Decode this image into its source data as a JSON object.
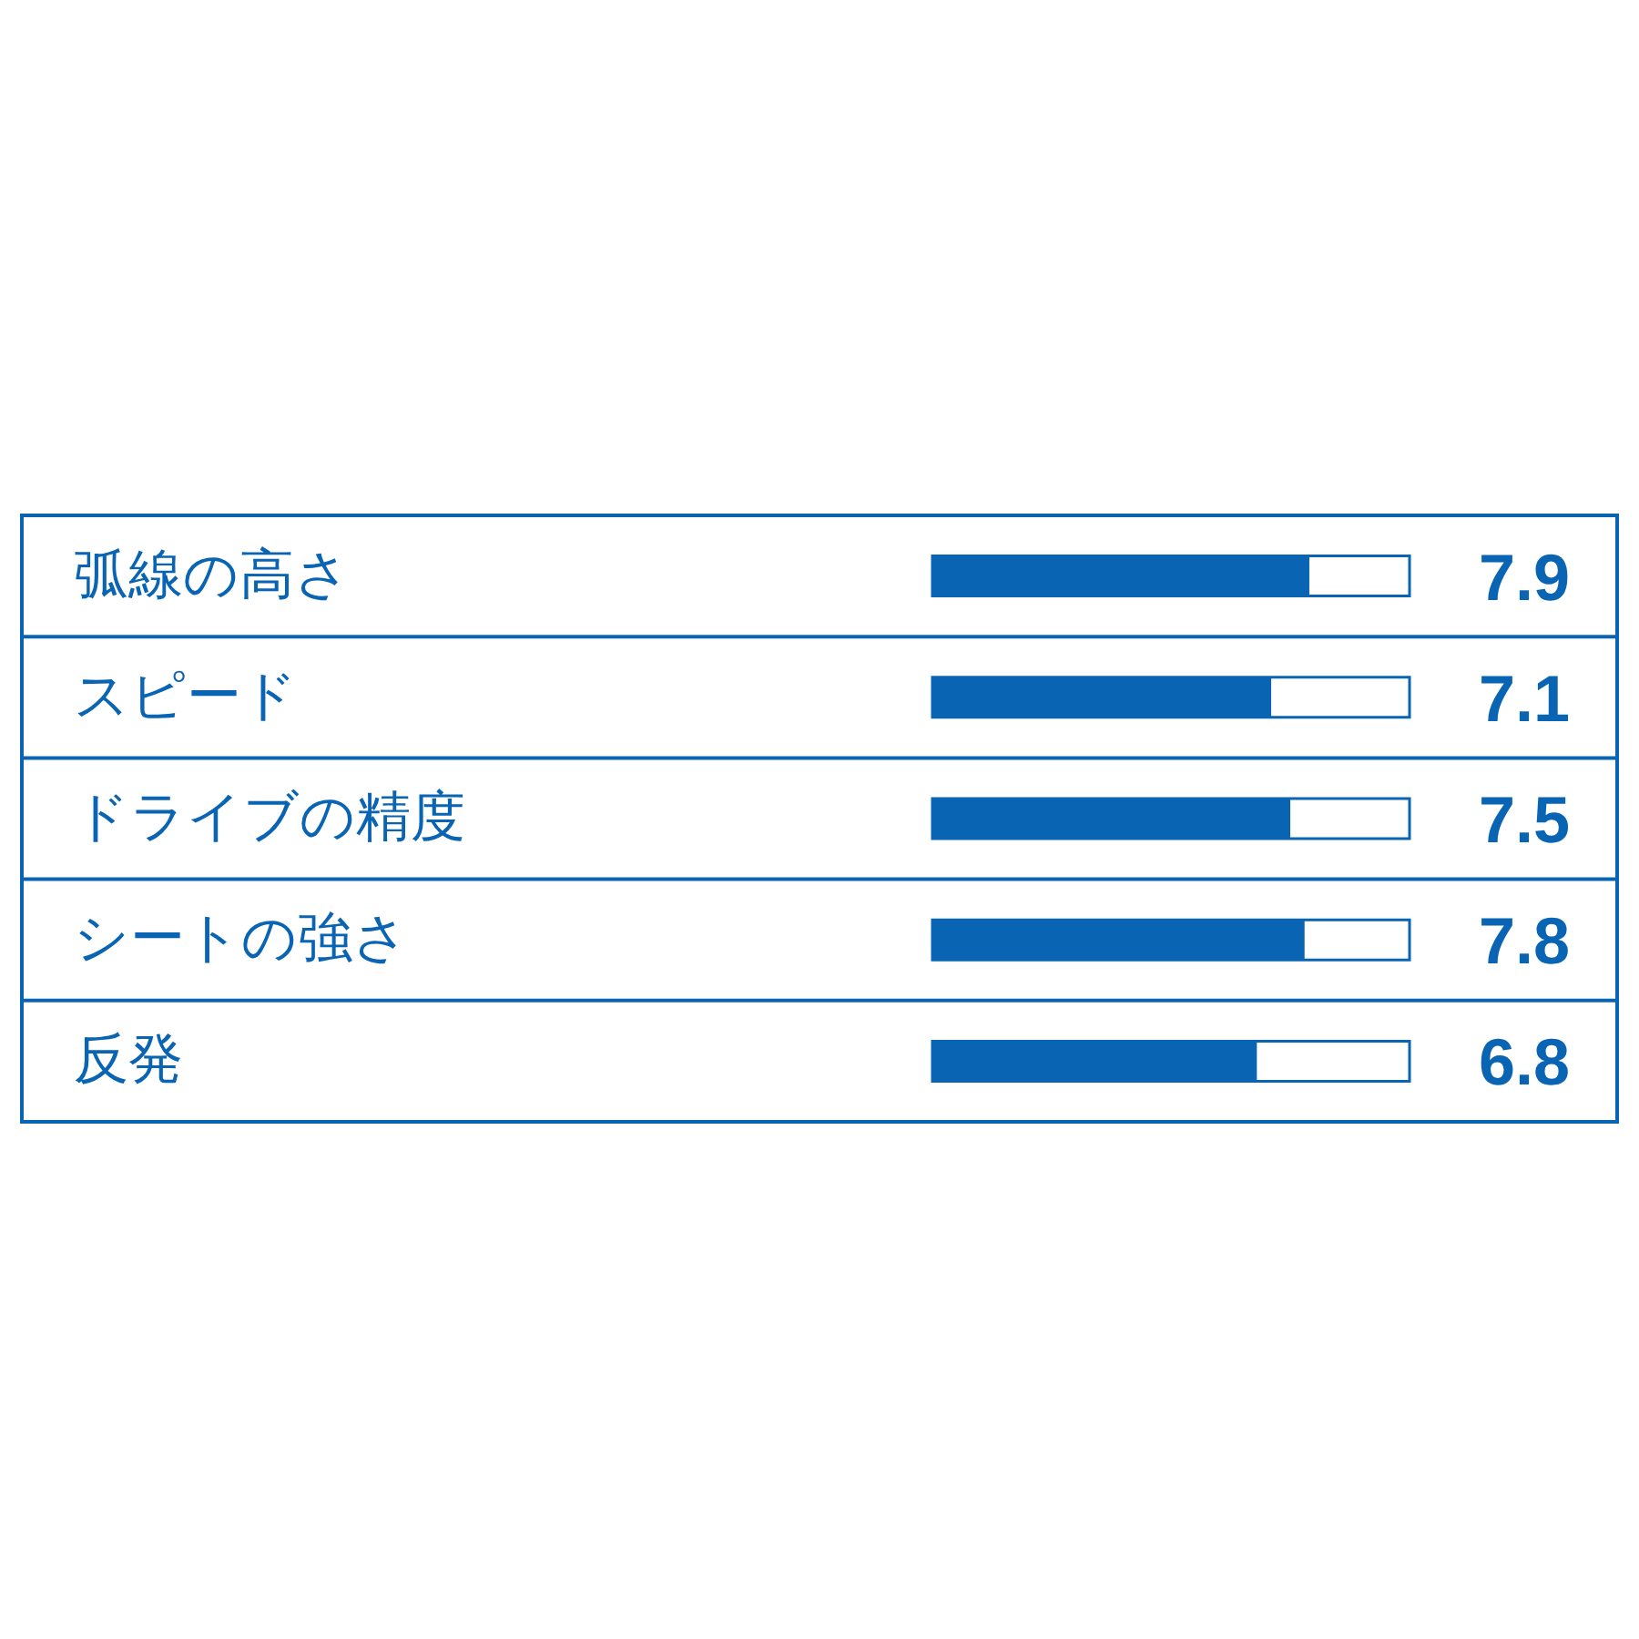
{
  "chart_data": {
    "type": "bar",
    "orientation": "horizontal",
    "categories": [
      "弧線の高さ",
      "スピード",
      "ドライブの精度",
      "シートの強さ",
      "反発"
    ],
    "values": [
      7.9,
      7.1,
      7.5,
      7.8,
      6.8
    ],
    "color": "#0a64b4",
    "xlim": [
      0,
      10
    ],
    "data_labels": true,
    "grid": "y",
    "tick_labels": "y"
  }
}
